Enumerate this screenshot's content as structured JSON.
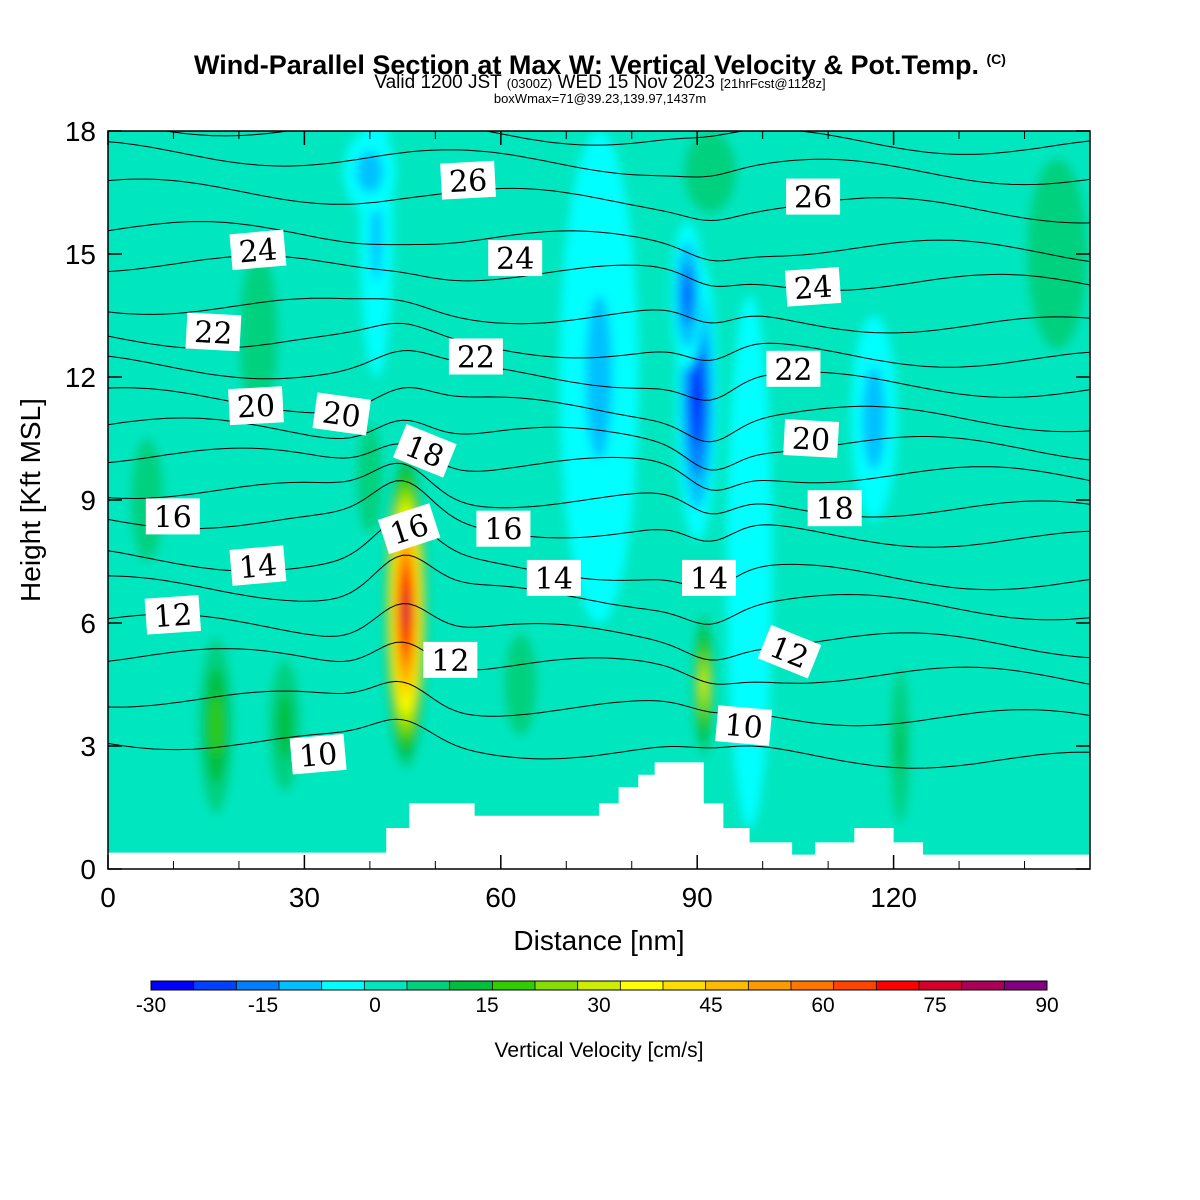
{
  "title": {
    "main": "Wind-Parallel Section at Max W: Vertical Velocity & Pot.Temp.",
    "copyright": "(C)",
    "valid_a": "Valid 1200 JST",
    "valid_z": "(0300Z)",
    "valid_b": "WED 15 Nov 2023",
    "valid_fcst": "[21hrFcst@1128z]",
    "box": "boxWmax=71@39.23,139.97,1437m"
  },
  "colors": {
    "scale": [
      "#0000ff",
      "#0040ff",
      "#0080ff",
      "#00c0ff",
      "#00ffff",
      "#00e6bf",
      "#00d17f",
      "#00bf3f",
      "#33cc00",
      "#88dd00",
      "#ccee00",
      "#ffff00",
      "#ffdd00",
      "#ffbb00",
      "#ff9900",
      "#ff7700",
      "#ff4400",
      "#ff0000",
      "#d4002a",
      "#aa0055",
      "#800080"
    ],
    "background": "#00e6bf",
    "terrain": "#ffffff"
  },
  "chart_data": {
    "type": "heatmap",
    "xlabel": "Distance [nm]",
    "ylabel": "Height [Kft MSL]",
    "xlim": [
      0,
      150
    ],
    "ylim": [
      0,
      18
    ],
    "xticks": [
      0,
      30,
      60,
      90,
      120
    ],
    "yticks": [
      0,
      3,
      6,
      9,
      12,
      15,
      18
    ],
    "colorbar": {
      "label": "Vertical Velocity [cm/s]",
      "min": -30,
      "max": 90,
      "step": 6,
      "tick_labels": [
        "-30",
        "-15",
        "0",
        "15",
        "30",
        "45",
        "60",
        "75",
        "90"
      ],
      "tick_values": [
        -30,
        -15,
        0,
        15,
        30,
        45,
        60,
        75,
        90
      ]
    },
    "vertical_velocity_features": [
      {
        "x": 45.5,
        "y": 6.3,
        "rx": 3.4,
        "ry": 4.0,
        "w": 88
      },
      {
        "x": 91.0,
        "y": 4.5,
        "rx": 1.8,
        "ry": 1.9,
        "w": 36
      },
      {
        "x": 90.0,
        "y": 11.5,
        "rx": 3.2,
        "ry": 3.5,
        "w": -27
      },
      {
        "x": 88.5,
        "y": 14.0,
        "rx": 2.5,
        "ry": 1.8,
        "w": -20
      },
      {
        "x": 41.0,
        "y": 15.5,
        "rx": 2.5,
        "ry": 3.5,
        "w": -10
      },
      {
        "x": 117.0,
        "y": 11.0,
        "rx": 3.5,
        "ry": 2.5,
        "w": -12
      },
      {
        "x": 40.0,
        "y": 17.0,
        "rx": 4.0,
        "ry": 1.0,
        "w": -12
      },
      {
        "x": 75.0,
        "y": 12.0,
        "rx": 6.0,
        "ry": 6.0,
        "w": -8
      },
      {
        "x": 98.0,
        "y": 7.5,
        "rx": 3.5,
        "ry": 6.5,
        "w": -7
      },
      {
        "x": 16.5,
        "y": 3.5,
        "rx": 3.0,
        "ry": 2.5,
        "w": 20
      },
      {
        "x": 27.0,
        "y": 3.5,
        "rx": 3.0,
        "ry": 2.0,
        "w": 16
      },
      {
        "x": 121.0,
        "y": 3.0,
        "rx": 2.0,
        "ry": 2.5,
        "w": 12
      },
      {
        "x": 40.0,
        "y": 9.5,
        "rx": 3.0,
        "ry": 2.0,
        "w": 10
      },
      {
        "x": 92.0,
        "y": 17.0,
        "rx": 6.0,
        "ry": 1.5,
        "w": 9
      },
      {
        "x": 145.0,
        "y": 15.0,
        "rx": 7.0,
        "ry": 3.5,
        "w": 9
      },
      {
        "x": 6.0,
        "y": 9.0,
        "rx": 5.0,
        "ry": 3.0,
        "w": 6
      },
      {
        "x": 23.0,
        "y": 13.0,
        "rx": 6.0,
        "ry": 4.0,
        "w": 6
      },
      {
        "x": 63.0,
        "y": 4.5,
        "rx": 5.0,
        "ry": 2.5,
        "w": 7
      }
    ],
    "potential_temperature_labels": [
      {
        "text": "26",
        "x": 55.0,
        "y": 16.8,
        "angle": -3
      },
      {
        "text": "26",
        "x": 107.7,
        "y": 16.4,
        "angle": 0
      },
      {
        "text": "24",
        "x": 22.9,
        "y": 15.1,
        "angle": -5
      },
      {
        "text": "24",
        "x": 62.2,
        "y": 14.9,
        "angle": 0
      },
      {
        "text": "24",
        "x": 107.7,
        "y": 14.2,
        "angle": -4
      },
      {
        "text": "22",
        "x": 16.1,
        "y": 13.1,
        "angle": 3
      },
      {
        "text": "22",
        "x": 56.2,
        "y": 12.5,
        "angle": 0
      },
      {
        "text": "22",
        "x": 104.7,
        "y": 12.2,
        "angle": 0
      },
      {
        "text": "20",
        "x": 22.6,
        "y": 11.3,
        "angle": -3
      },
      {
        "text": "20",
        "x": 35.7,
        "y": 11.1,
        "angle": 8
      },
      {
        "text": "20",
        "x": 107.4,
        "y": 10.5,
        "angle": 3
      },
      {
        "text": "18",
        "x": 48.4,
        "y": 10.2,
        "angle": 22
      },
      {
        "text": "18",
        "x": 111.0,
        "y": 8.8,
        "angle": 0
      },
      {
        "text": "16",
        "x": 9.9,
        "y": 8.6,
        "angle": 0
      },
      {
        "text": "16",
        "x": 60.4,
        "y": 8.3,
        "angle": 0
      },
      {
        "text": "16",
        "x": 46.0,
        "y": 8.3,
        "angle": -18
      },
      {
        "text": "14",
        "x": 22.9,
        "y": 7.4,
        "angle": -5
      },
      {
        "text": "14",
        "x": 68.1,
        "y": 7.1,
        "angle": 0
      },
      {
        "text": "14",
        "x": 91.8,
        "y": 7.1,
        "angle": 0
      },
      {
        "text": "12",
        "x": 9.9,
        "y": 6.2,
        "angle": -4
      },
      {
        "text": "12",
        "x": 52.3,
        "y": 5.1,
        "angle": 0
      },
      {
        "text": "12",
        "x": 104.1,
        "y": 5.3,
        "angle": 22
      },
      {
        "text": "10",
        "x": 32.1,
        "y": 2.8,
        "angle": -5
      },
      {
        "text": "10",
        "x": 97.1,
        "y": 3.5,
        "angle": 5
      }
    ],
    "terrain_height": [
      [
        0,
        0.4
      ],
      [
        42.5,
        0.4
      ],
      [
        42.5,
        1.0
      ],
      [
        46,
        1.0
      ],
      [
        46,
        1.6
      ],
      [
        56,
        1.6
      ],
      [
        56,
        1.3
      ],
      [
        75,
        1.3
      ],
      [
        75,
        1.6
      ],
      [
        78,
        1.6
      ],
      [
        78,
        2.0
      ],
      [
        81,
        2.0
      ],
      [
        81,
        2.3
      ],
      [
        83.5,
        2.3
      ],
      [
        83.5,
        2.6
      ],
      [
        91,
        2.6
      ],
      [
        91,
        1.6
      ],
      [
        94,
        1.6
      ],
      [
        94,
        1.0
      ],
      [
        98,
        1.0
      ],
      [
        98,
        0.65
      ],
      [
        104.5,
        0.65
      ],
      [
        104.5,
        0.35
      ],
      [
        108,
        0.35
      ],
      [
        108,
        0.65
      ],
      [
        114,
        0.65
      ],
      [
        114,
        1.0
      ],
      [
        120,
        1.0
      ],
      [
        120,
        0.65
      ],
      [
        124.5,
        0.65
      ],
      [
        124.5,
        0.35
      ],
      [
        150,
        0.35
      ]
    ]
  }
}
